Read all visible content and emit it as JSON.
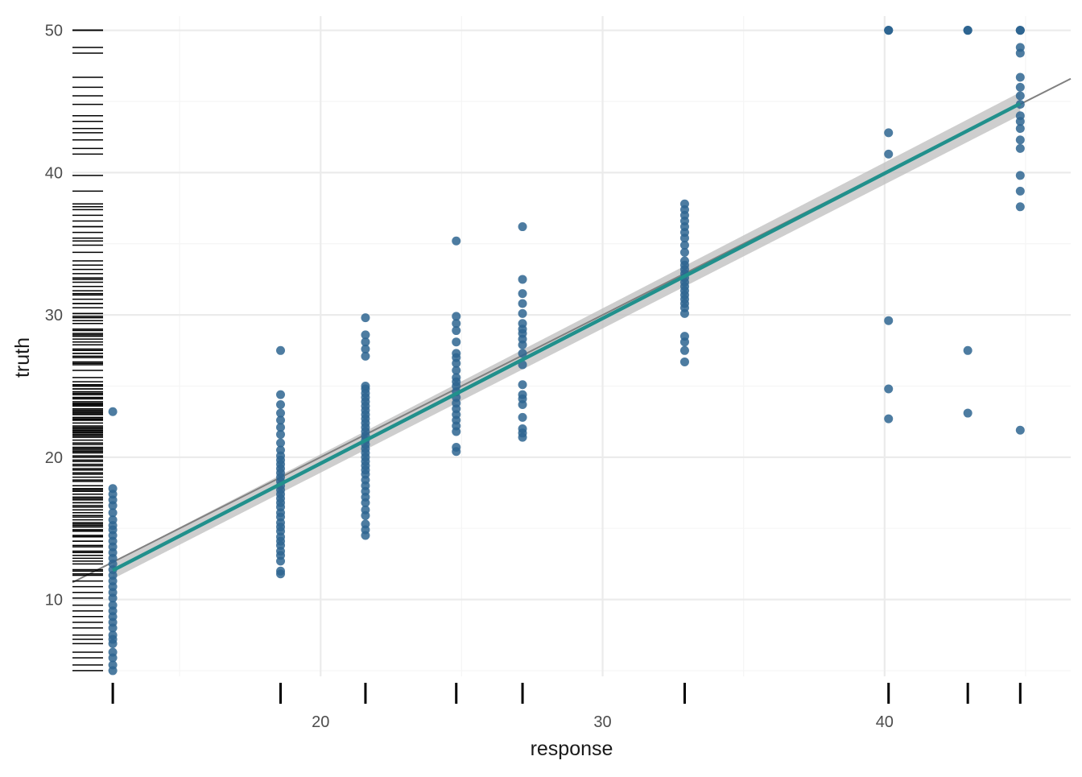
{
  "chart_data": {
    "type": "scatter",
    "title": "",
    "xlabel": "response",
    "ylabel": "truth",
    "xlim": [
      11.2,
      46.6
    ],
    "ylim": [
      4.6,
      51.0
    ],
    "x_ticks": [
      20,
      30,
      40
    ],
    "x_tick_labels": [
      "20",
      "30",
      "40"
    ],
    "x_minor_ticks": [
      15,
      25,
      35,
      45
    ],
    "y_ticks": [
      10,
      20,
      30,
      40,
      50
    ],
    "y_tick_labels": [
      "10",
      "20",
      "30",
      "40",
      "50"
    ],
    "y_minor_ticks": [
      5,
      15,
      25,
      35,
      45
    ],
    "grid": true,
    "legend": "none",
    "colors": {
      "points": "#2e6590",
      "fit_line": "#21908c",
      "ci_band": "#bebebe",
      "reference_line": "#808080",
      "rug": "#000000",
      "grid_major": "#ebebeb",
      "grid_minor": "#f5f5f5"
    },
    "reference_line": {
      "intercept": 0,
      "slope": 1
    },
    "fit": {
      "x": [
        12.63,
        44.81
      ],
      "y": [
        12.05,
        44.85
      ],
      "ci_halfwidth": [
        0.6,
        0.8
      ]
    },
    "groups": [
      {
        "x": 12.63,
        "y": [
          5.0,
          5.4,
          5.9,
          6.3,
          6.9,
          7.2,
          7.5,
          8.0,
          8.4,
          8.8,
          9.2,
          9.6,
          10.1,
          10.5,
          10.9,
          11.3,
          11.7,
          12.1,
          12.5,
          12.9,
          13.3,
          13.7,
          14.1,
          14.5,
          14.9,
          15.2,
          15.6,
          16.1,
          16.6,
          17.0,
          17.4,
          17.8,
          23.2
        ]
      },
      {
        "x": 18.58,
        "y": [
          11.8,
          12.0,
          12.7,
          13.1,
          13.4,
          13.8,
          14.1,
          14.4,
          14.8,
          15.1,
          15.4,
          15.8,
          16.1,
          16.5,
          16.8,
          17.1,
          17.4,
          17.7,
          18.0,
          18.3,
          18.6,
          18.9,
          19.2,
          19.5,
          19.8,
          20.1,
          20.5,
          21.0,
          21.6,
          22.1,
          22.6,
          23.1,
          23.7,
          24.4,
          27.5
        ]
      },
      {
        "x": 21.59,
        "y": [
          14.5,
          14.9,
          15.3,
          15.9,
          16.3,
          16.8,
          17.2,
          17.6,
          18.0,
          18.4,
          18.8,
          19.1,
          19.4,
          19.7,
          20.0,
          20.3,
          20.6,
          20.9,
          21.2,
          21.5,
          21.8,
          22.1,
          22.4,
          22.7,
          23.0,
          23.3,
          23.6,
          23.9,
          24.2,
          24.5,
          24.8,
          25.0,
          27.1,
          27.6,
          28.1,
          28.6,
          29.8
        ]
      },
      {
        "x": 24.81,
        "y": [
          20.4,
          20.7,
          21.8,
          22.2,
          22.6,
          23.0,
          23.4,
          23.8,
          24.2,
          24.6,
          25.0,
          25.3,
          25.6,
          26.1,
          26.6,
          27.0,
          27.3,
          28.1,
          28.9,
          29.4,
          29.9,
          35.2
        ]
      },
      {
        "x": 27.16,
        "y": [
          21.4,
          21.7,
          22.0,
          22.8,
          23.7,
          24.1,
          24.4,
          25.1,
          26.5,
          27.3,
          27.9,
          28.3,
          28.7,
          29.0,
          29.4,
          30.1,
          30.8,
          31.5,
          32.5,
          36.2
        ]
      },
      {
        "x": 32.91,
        "y": [
          26.7,
          27.5,
          28.1,
          28.5,
          30.1,
          30.5,
          30.8,
          31.1,
          31.4,
          31.7,
          32.0,
          32.3,
          32.6,
          32.9,
          33.2,
          33.5,
          33.8,
          34.4,
          34.9,
          35.4,
          35.8,
          36.2,
          36.6,
          37.0,
          37.4,
          37.8
        ]
      },
      {
        "x": 40.14,
        "y": [
          22.7,
          24.8,
          29.6,
          41.3,
          42.8,
          50.0,
          50.0,
          50.0
        ]
      },
      {
        "x": 42.95,
        "y": [
          23.1,
          27.5,
          50.0,
          50.0,
          50.0
        ]
      },
      {
        "x": 44.81,
        "y": [
          21.9,
          37.6,
          38.7,
          39.8,
          41.7,
          42.3,
          43.1,
          43.6,
          44.0,
          44.8,
          45.4,
          46.0,
          46.7,
          48.4,
          48.8,
          50.0,
          50.0,
          50.0
        ]
      }
    ]
  }
}
